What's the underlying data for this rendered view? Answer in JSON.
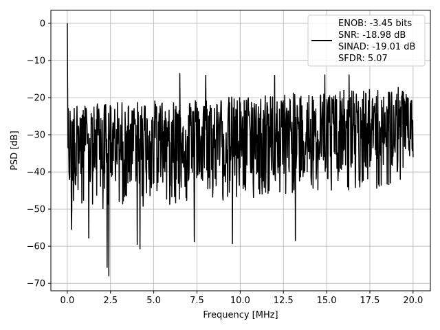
{
  "chart_data": {
    "type": "line",
    "title": "",
    "xlabel": "Frequency [MHz]",
    "ylabel": "PSD [dB]",
    "xlim": [
      -0.95,
      21.0
    ],
    "ylim": [
      -72.0,
      3.5
    ],
    "xticks": [
      0.0,
      2.5,
      5.0,
      7.5,
      10.0,
      12.5,
      15.0,
      17.5,
      20.0
    ],
    "xtick_labels": [
      "0.0",
      "2.5",
      "5.0",
      "7.5",
      "10.0",
      "12.5",
      "15.0",
      "17.5",
      "20.0"
    ],
    "yticks": [
      0,
      -10,
      -20,
      -30,
      -40,
      -50,
      -60,
      -70
    ],
    "ytick_labels": [
      "0",
      "−10",
      "−20",
      "−30",
      "−40",
      "−50",
      "−60",
      "−70"
    ],
    "grid": true,
    "legend_placement": "top-right",
    "legend": {
      "lines": [
        "ENOB: -3.45 bits",
        "SNR: -18.98 dB",
        "SINAD: -19.01 dB",
        "SFDR: 5.07"
      ]
    },
    "series": [
      {
        "color": "#000000",
        "x_range": [
          0.0,
          20.0
        ],
        "points": 1000,
        "peak": {
          "x": 0.0,
          "y": 0.0
        },
        "ceiling_trend": {
          "start": -22,
          "end": -17
        },
        "mean_trend": {
          "start": -30,
          "end": -27
        },
        "floor_trend": {
          "start": -45,
          "end": -38
        },
        "deep_dips": [
          {
            "x": 0.25,
            "y": -55.5
          },
          {
            "x": 1.25,
            "y": -57.8
          },
          {
            "x": 2.3,
            "y": -65.7
          },
          {
            "x": 2.4,
            "y": -68.0
          },
          {
            "x": 4.05,
            "y": -59.5
          },
          {
            "x": 4.2,
            "y": -60.7
          },
          {
            "x": 7.35,
            "y": -58.8
          },
          {
            "x": 9.55,
            "y": -59.3
          },
          {
            "x": 13.2,
            "y": -58.5
          }
        ],
        "spurs": [
          {
            "x": 6.5,
            "y": -13.5
          },
          {
            "x": 8.0,
            "y": -14.0
          },
          {
            "x": 12.0,
            "y": -14.0
          },
          {
            "x": 14.9,
            "y": -13.9
          },
          {
            "x": 16.3,
            "y": -13.9
          }
        ]
      }
    ]
  }
}
